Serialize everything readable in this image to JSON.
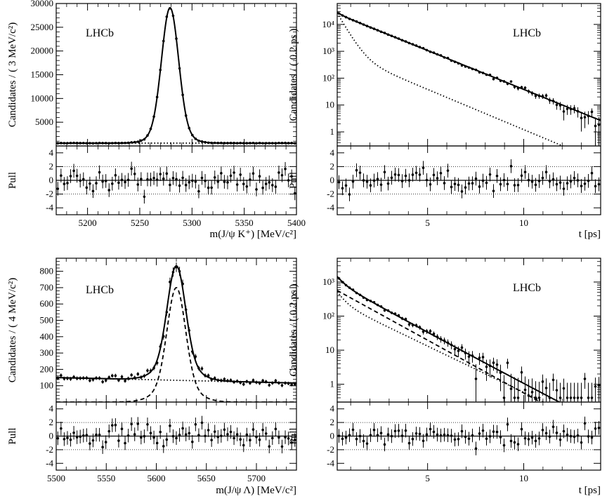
{
  "chart_data": [
    {
      "id": "p1",
      "type": "scatter",
      "label": "LHCb",
      "ylabel": "Candidates / ( 3 MeV/c²)",
      "xlabel": "m(J/ψ K⁺) [MeV/c²]",
      "pull_label": "Pull",
      "xlim": [
        5170,
        5400
      ],
      "ylim": [
        0,
        30000
      ],
      "log_y": false,
      "x_ticks": [
        5200,
        5250,
        5300,
        5350,
        5400
      ],
      "y_ticks": [
        5000,
        10000,
        15000,
        20000,
        25000,
        30000
      ],
      "pull_ticks": [
        4,
        2,
        0,
        -2,
        -4
      ],
      "pull_ylim": [
        -5,
        5
      ],
      "signal_peak": {
        "mean": 5279,
        "sigma": 8,
        "height": 28500
      },
      "background_level": 600,
      "series": [
        {
          "role": "total fit",
          "style": "solid"
        },
        {
          "role": "background",
          "style": "dotted"
        },
        {
          "role": "data",
          "style": "points"
        }
      ]
    },
    {
      "id": "p2",
      "type": "scatter",
      "label": "LHCb",
      "ylabel": "Candidates / ( 0.2 ps )",
      "xlabel": "t [ps]",
      "pull_label": "Pull",
      "xlim": [
        0.3,
        14
      ],
      "ylim": [
        0.3,
        60000
      ],
      "log_y": true,
      "x_ticks": [
        5,
        10
      ],
      "y_ticks": [
        1,
        10,
        100,
        1000,
        10000
      ],
      "y_tick_labels": [
        "1",
        "10",
        "10²",
        "10³",
        "10⁴"
      ],
      "pull_ticks": [
        4,
        2,
        0,
        -2,
        -4
      ],
      "pull_ylim": [
        -5,
        5
      ],
      "series": [
        {
          "role": "total fit",
          "style": "solid"
        },
        {
          "role": "background",
          "style": "dotted"
        },
        {
          "role": "data",
          "style": "points"
        }
      ]
    },
    {
      "id": "p3",
      "type": "scatter",
      "label": "LHCb",
      "ylabel": "Candidates / ( 4 MeV/c²)",
      "xlabel": "m(J/ψ Λ) [MeV/c²]",
      "pull_label": "Pull",
      "xlim": [
        5500,
        5740
      ],
      "ylim": [
        0,
        880
      ],
      "log_y": false,
      "x_ticks": [
        5500,
        5550,
        5600,
        5650,
        5700
      ],
      "y_ticks": [
        100,
        200,
        300,
        400,
        500,
        600,
        700,
        800
      ],
      "pull_ticks": [
        4,
        2,
        0,
        -2,
        -4
      ],
      "pull_ylim": [
        -5,
        5
      ],
      "signal_peak": {
        "mean": 5620,
        "sigma": 9,
        "height": 700
      },
      "background_level": 145,
      "series": [
        {
          "role": "total fit",
          "style": "solid"
        },
        {
          "role": "signal",
          "style": "dashed"
        },
        {
          "role": "background",
          "style": "dotted"
        },
        {
          "role": "data",
          "style": "points"
        }
      ]
    },
    {
      "id": "p4",
      "type": "scatter",
      "label": "LHCb",
      "ylabel": "Candidates / ( 0.2 ps )",
      "xlabel": "t [ps]",
      "pull_label": "Pull",
      "xlim": [
        0.3,
        14
      ],
      "ylim": [
        0.3,
        5000
      ],
      "log_y": true,
      "x_ticks": [
        5,
        10
      ],
      "y_ticks": [
        1,
        10,
        100,
        1000
      ],
      "y_tick_labels": [
        "1",
        "10",
        "10²",
        "10³"
      ],
      "pull_ticks": [
        4,
        2,
        0,
        -2,
        -4
      ],
      "pull_ylim": [
        -5,
        5
      ],
      "series": [
        {
          "role": "total fit",
          "style": "solid"
        },
        {
          "role": "signal",
          "style": "dashed"
        },
        {
          "role": "background",
          "style": "dotted"
        },
        {
          "role": "data",
          "style": "points"
        }
      ]
    }
  ]
}
